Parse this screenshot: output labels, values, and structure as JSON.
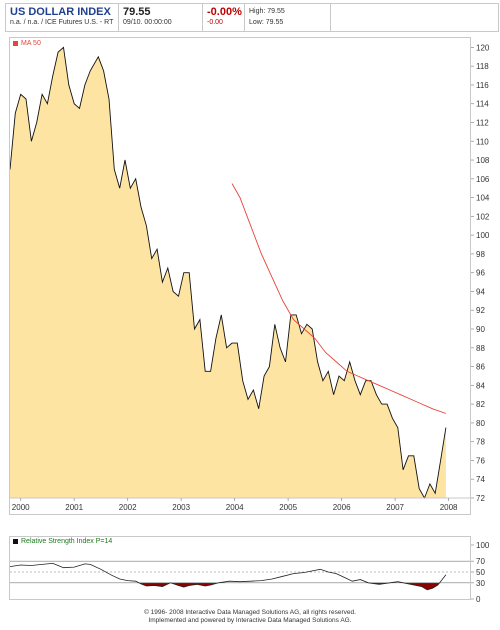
{
  "header": {
    "title": "US DOLLAR INDEX",
    "subtitle": "n.a. / n.a. / ICE Futures U.S. - RT",
    "price": "79.55",
    "datetime": "09/10. 00:00:00",
    "change_pct": "-0.00%",
    "change_abs": "-0.00",
    "high": "High: 79.55",
    "low": "Low: 79.55"
  },
  "footer": {
    "line1": "© 1996- 2008 Interactive Data Managed Solutions AG, all rights reserved.",
    "line2": "Implemented and powered by Interactive Data Managed Solutions AG."
  },
  "colors": {
    "area_fill": "#fde4a2",
    "price_line": "#111111",
    "ma_line": "#e8443a",
    "rsi_neg": "#8b0000",
    "rsi_label": "#1a7a1a",
    "title": "#1f3f8f"
  },
  "chart_data": [
    {
      "type": "area",
      "legend": "MA 50",
      "x_ticks": [
        "2000",
        "2001",
        "2002",
        "2003",
        "2004",
        "2005",
        "2006",
        "2007",
        "2008"
      ],
      "y_ticks": [
        72,
        74,
        76,
        78,
        80,
        82,
        84,
        86,
        88,
        90,
        92,
        94,
        96,
        98,
        100,
        102,
        104,
        106,
        108,
        110,
        112,
        114,
        116,
        118,
        120
      ],
      "xlim": [
        1999.8,
        2008.4
      ],
      "ylim": [
        72,
        121
      ],
      "price_series": [
        [
          1999.8,
          107
        ],
        [
          1999.9,
          113
        ],
        [
          2000.0,
          115
        ],
        [
          2000.1,
          114.5
        ],
        [
          2000.2,
          110
        ],
        [
          2000.3,
          112
        ],
        [
          2000.4,
          115
        ],
        [
          2000.5,
          114
        ],
        [
          2000.6,
          117
        ],
        [
          2000.7,
          119.5
        ],
        [
          2000.8,
          120
        ],
        [
          2000.9,
          116
        ],
        [
          2001.0,
          114
        ],
        [
          2001.1,
          113.5
        ],
        [
          2001.2,
          116
        ],
        [
          2001.3,
          117.5
        ],
        [
          2001.45,
          119
        ],
        [
          2001.55,
          117.5
        ],
        [
          2001.65,
          114.5
        ],
        [
          2001.75,
          107
        ],
        [
          2001.85,
          105
        ],
        [
          2001.95,
          108
        ],
        [
          2002.05,
          105
        ],
        [
          2002.15,
          106
        ],
        [
          2002.25,
          103
        ],
        [
          2002.35,
          101
        ],
        [
          2002.45,
          97.5
        ],
        [
          2002.55,
          98.5
        ],
        [
          2002.65,
          95
        ],
        [
          2002.75,
          96.5
        ],
        [
          2002.85,
          94
        ],
        [
          2002.95,
          93.5
        ],
        [
          2003.05,
          96
        ],
        [
          2003.15,
          96
        ],
        [
          2003.25,
          90
        ],
        [
          2003.35,
          91
        ],
        [
          2003.45,
          85.5
        ],
        [
          2003.55,
          85.5
        ],
        [
          2003.65,
          89
        ],
        [
          2003.75,
          91.5
        ],
        [
          2003.85,
          88
        ],
        [
          2003.95,
          88.5
        ],
        [
          2004.05,
          88.5
        ],
        [
          2004.15,
          84.5
        ],
        [
          2004.25,
          82.5
        ],
        [
          2004.35,
          83.5
        ],
        [
          2004.45,
          81.5
        ],
        [
          2004.55,
          85
        ],
        [
          2004.65,
          86
        ],
        [
          2004.75,
          90.5
        ],
        [
          2004.85,
          88
        ],
        [
          2004.95,
          86.5
        ],
        [
          2005.05,
          91.5
        ],
        [
          2005.15,
          91.5
        ],
        [
          2005.25,
          89.5
        ],
        [
          2005.35,
          90.5
        ],
        [
          2005.45,
          90
        ],
        [
          2005.55,
          86.5
        ],
        [
          2005.65,
          84.5
        ],
        [
          2005.75,
          85.5
        ],
        [
          2005.85,
          83
        ],
        [
          2005.95,
          85
        ],
        [
          2006.05,
          84.5
        ],
        [
          2006.15,
          86.5
        ],
        [
          2006.25,
          84.5
        ],
        [
          2006.35,
          83
        ],
        [
          2006.45,
          84.5
        ],
        [
          2006.55,
          84.5
        ],
        [
          2006.65,
          83
        ],
        [
          2006.75,
          82
        ],
        [
          2006.85,
          82
        ],
        [
          2006.95,
          80.5
        ],
        [
          2007.05,
          79.5
        ],
        [
          2007.15,
          75
        ],
        [
          2007.25,
          76.5
        ],
        [
          2007.35,
          76.5
        ],
        [
          2007.45,
          73
        ],
        [
          2007.55,
          72
        ],
        [
          2007.65,
          73.5
        ],
        [
          2007.75,
          72.5
        ],
        [
          2007.85,
          76
        ],
        [
          2007.95,
          79.5
        ]
      ],
      "ma_series": [
        [
          2003.95,
          105.5
        ],
        [
          2004.1,
          104
        ],
        [
          2004.3,
          101
        ],
        [
          2004.5,
          98
        ],
        [
          2004.7,
          95.5
        ],
        [
          2004.9,
          93
        ],
        [
          2005.1,
          91
        ],
        [
          2005.3,
          90
        ],
        [
          2005.5,
          89
        ],
        [
          2005.7,
          87.5
        ],
        [
          2005.9,
          86.5
        ],
        [
          2006.1,
          85.5
        ],
        [
          2006.3,
          85
        ],
        [
          2006.5,
          84.5
        ],
        [
          2006.7,
          84
        ],
        [
          2006.9,
          83.5
        ],
        [
          2007.1,
          83
        ],
        [
          2007.3,
          82.5
        ],
        [
          2007.5,
          82
        ],
        [
          2007.7,
          81.5
        ],
        [
          2007.95,
          81
        ]
      ]
    },
    {
      "type": "line",
      "legend": "Relative Strength Index P=14",
      "y_ticks": [
        0,
        30,
        50,
        70,
        100
      ],
      "ylim": [
        0,
        100
      ],
      "levels": [
        30,
        50,
        70
      ],
      "rsi_series": [
        [
          1999.8,
          60
        ],
        [
          2000.0,
          63
        ],
        [
          2000.2,
          62
        ],
        [
          2000.4,
          64
        ],
        [
          2000.6,
          66
        ],
        [
          2000.7,
          62
        ],
        [
          2000.8,
          58
        ],
        [
          2001.0,
          59
        ],
        [
          2001.2,
          65
        ],
        [
          2001.3,
          64
        ],
        [
          2001.5,
          55
        ],
        [
          2001.7,
          44
        ],
        [
          2001.85,
          37
        ],
        [
          2002.0,
          34
        ],
        [
          2002.15,
          33
        ],
        [
          2002.25,
          28
        ],
        [
          2002.35,
          24
        ],
        [
          2002.5,
          25
        ],
        [
          2002.65,
          23
        ],
        [
          2002.8,
          30
        ],
        [
          2002.95,
          25
        ],
        [
          2003.05,
          22
        ],
        [
          2003.15,
          25
        ],
        [
          2003.3,
          27
        ],
        [
          2003.45,
          24
        ],
        [
          2003.55,
          26
        ],
        [
          2003.7,
          30
        ],
        [
          2003.9,
          33
        ],
        [
          2004.1,
          32
        ],
        [
          2004.3,
          33
        ],
        [
          2004.5,
          34
        ],
        [
          2004.7,
          37
        ],
        [
          2004.9,
          42
        ],
        [
          2005.1,
          47
        ],
        [
          2005.3,
          49
        ],
        [
          2005.5,
          53
        ],
        [
          2005.6,
          55
        ],
        [
          2005.75,
          50
        ],
        [
          2005.9,
          47
        ],
        [
          2006.05,
          40
        ],
        [
          2006.2,
          33
        ],
        [
          2006.35,
          36
        ],
        [
          2006.5,
          30
        ],
        [
          2006.7,
          27
        ],
        [
          2006.9,
          30
        ],
        [
          2007.05,
          32
        ],
        [
          2007.2,
          29
        ],
        [
          2007.35,
          26
        ],
        [
          2007.5,
          23
        ],
        [
          2007.6,
          17
        ],
        [
          2007.7,
          20
        ],
        [
          2007.8,
          26
        ],
        [
          2007.95,
          45
        ]
      ]
    }
  ]
}
